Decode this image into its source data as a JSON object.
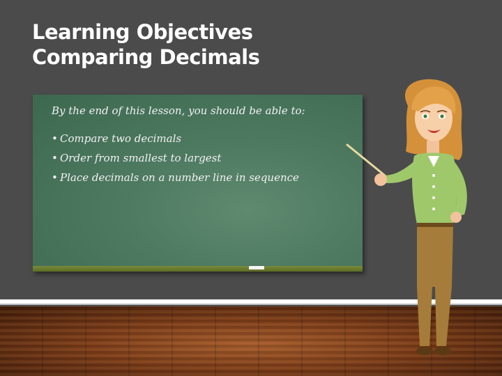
{
  "slide": {
    "title_line1": "Learning Objectives",
    "title_line2": "Comparing Decimals"
  },
  "board": {
    "intro": "By the end of this lesson, you should be able to:",
    "bullets": [
      "Compare two decimals",
      "Order from smallest to largest",
      "Place decimals on a number line in sequence"
    ]
  }
}
